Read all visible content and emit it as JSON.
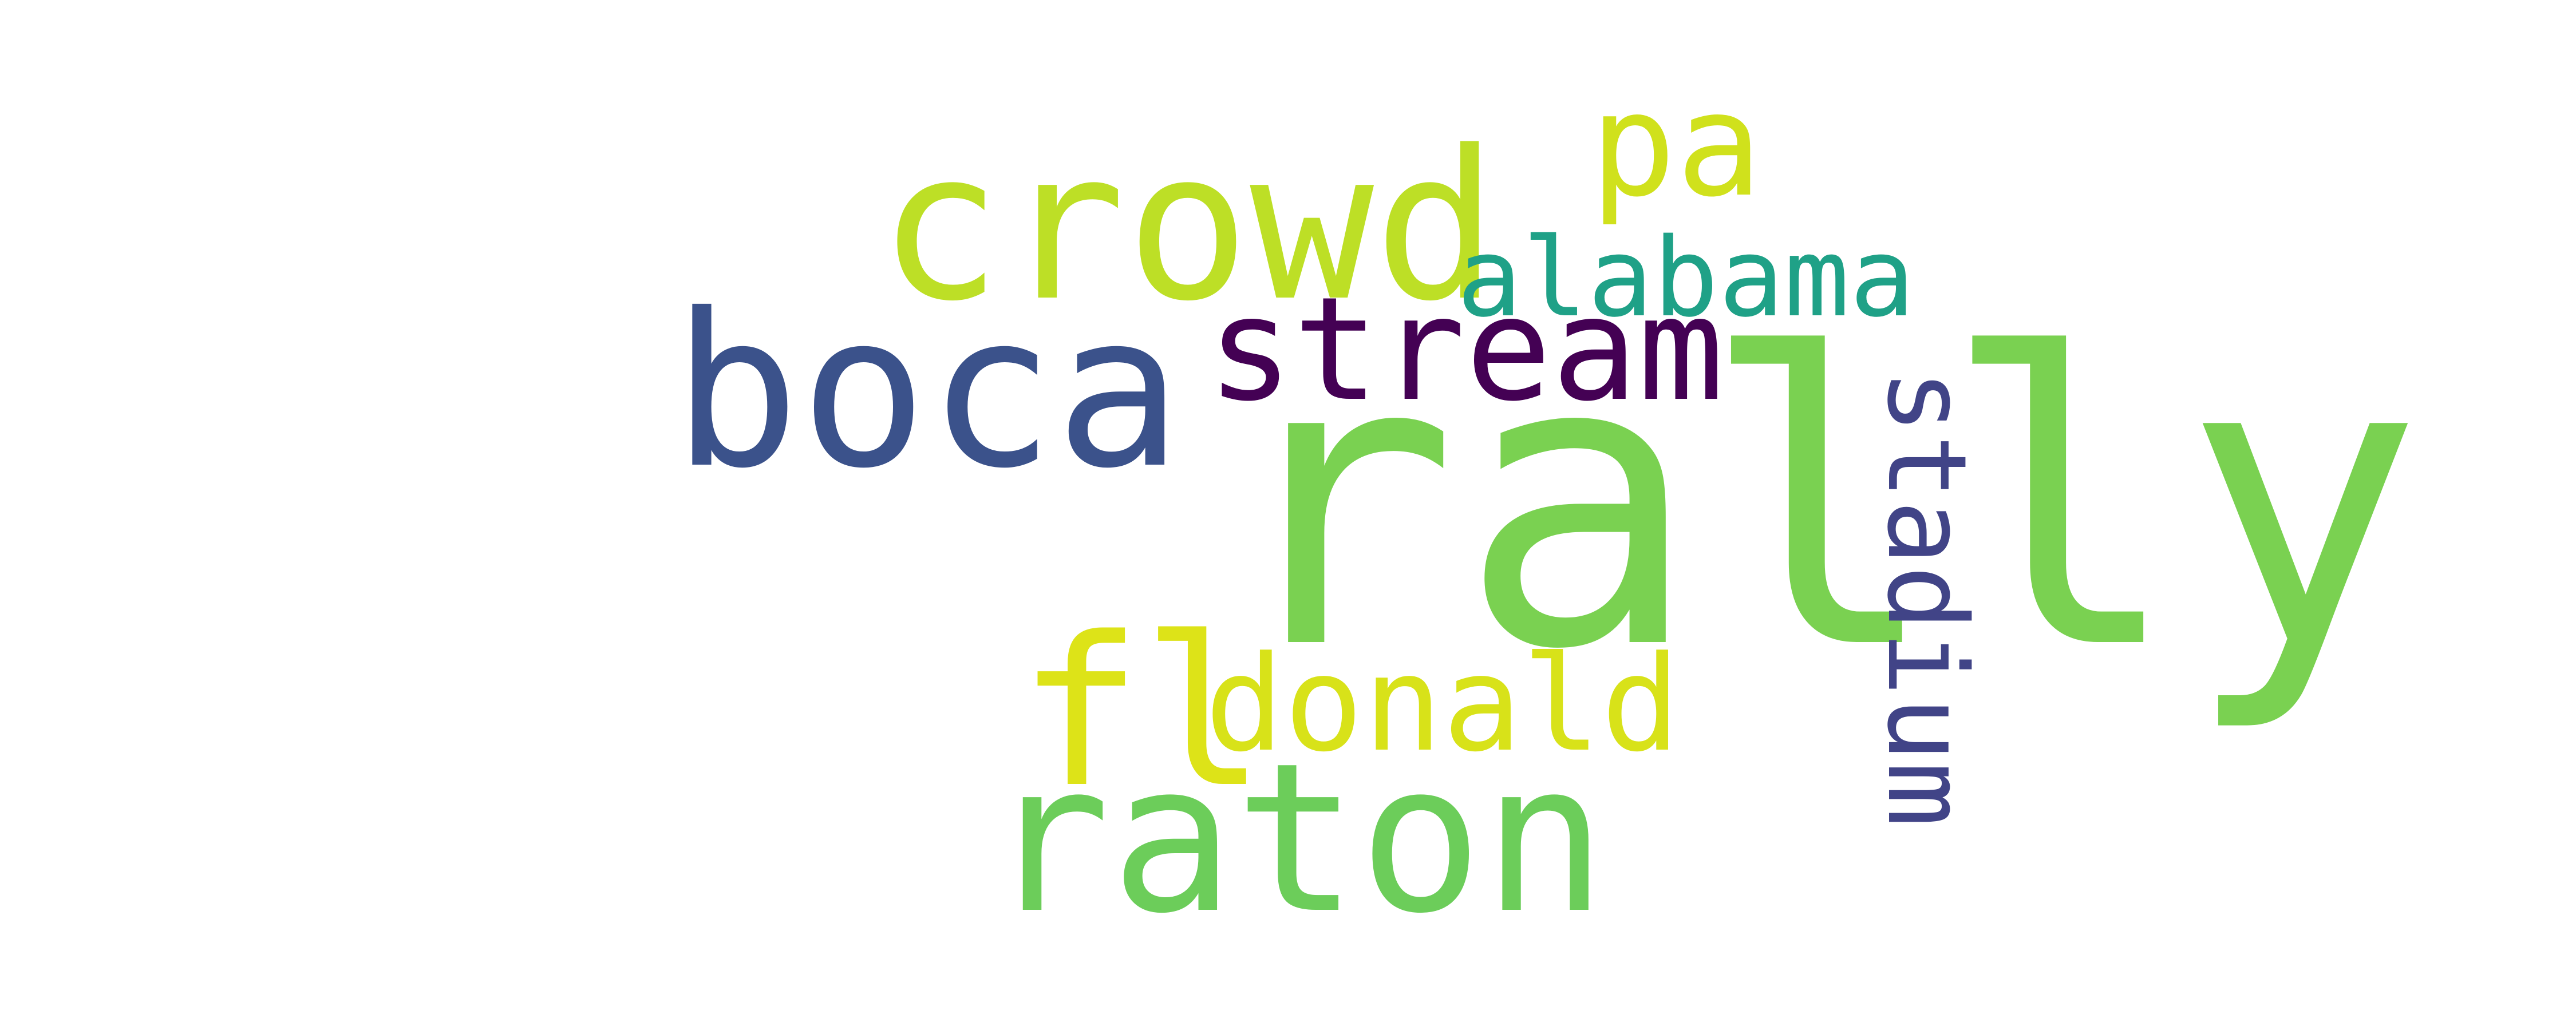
{
  "words": [
    {
      "text": "rally",
      "color": "#7ad151"
    },
    {
      "text": "crowd",
      "color": "#bddf26"
    },
    {
      "text": "boca",
      "color": "#3b528b"
    },
    {
      "text": "raton",
      "color": "#6ccd5a"
    },
    {
      "text": "stream",
      "color": "#440154"
    },
    {
      "text": "stadium",
      "color": "#414487"
    },
    {
      "text": "donald",
      "color": "#d8e219"
    },
    {
      "text": "fl",
      "color": "#dde318"
    },
    {
      "text": "alabama",
      "color": "#1fa187"
    },
    {
      "text": "pa",
      "color": "#d0e11c"
    }
  ]
}
